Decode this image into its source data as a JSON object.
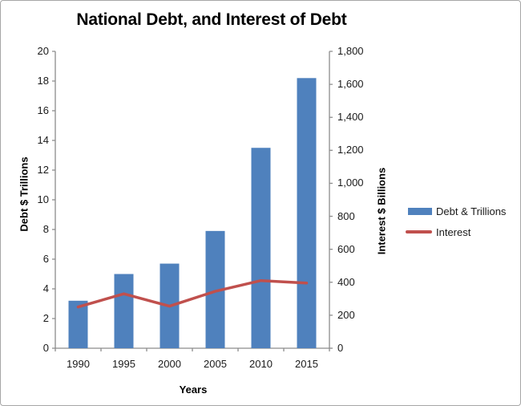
{
  "chart_data": {
    "type": "bar+line combo",
    "title": "National Debt, and Interest of Debt",
    "categories": [
      "1990",
      "1995",
      "2000",
      "2005",
      "2010",
      "2015"
    ],
    "series": [
      {
        "name": "Debt & Trillions",
        "type": "bar",
        "axis": "left",
        "values": [
          3.2,
          5.0,
          5.7,
          7.9,
          13.5,
          18.2
        ]
      },
      {
        "name": "Interest",
        "type": "line",
        "axis": "right",
        "values": [
          250,
          330,
          255,
          345,
          410,
          395
        ]
      }
    ],
    "xlabel": "Years",
    "left_axis": {
      "label": "Debt $ Trillions",
      "min": 0,
      "max": 20,
      "step": 2
    },
    "right_axis": {
      "label": "Interest $ Billions",
      "min": 0,
      "max": 1800,
      "step": 200,
      "thousands_separator": ","
    },
    "grid": false,
    "legend_position": "right"
  },
  "colors": {
    "bar": "#4f81bd",
    "line": "#c0504d",
    "axis": "#8c8c8c",
    "frame_border": "#a6a6a6",
    "text": "#1a1a1a",
    "title_text": "#000000"
  }
}
